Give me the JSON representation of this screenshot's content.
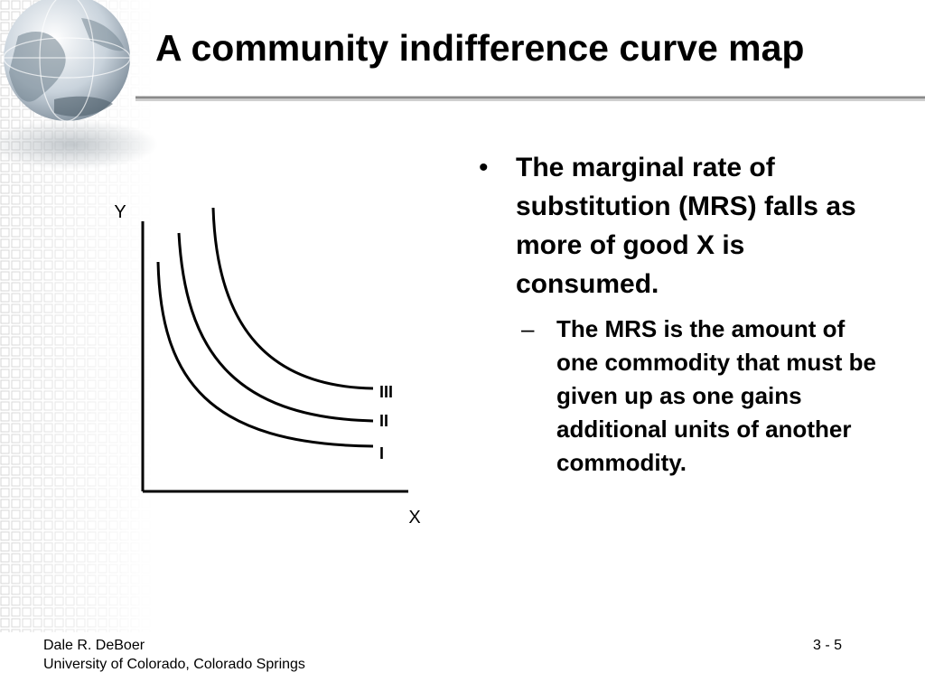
{
  "slide": {
    "title": "A community indifference curve map",
    "bullets": [
      {
        "marker": "•",
        "text": "The marginal rate of substitution (MRS) falls as more of good X is consumed.",
        "sub": {
          "marker": "–",
          "text": "The MRS is the amount of one commodity that must be given up as one gains additional units of another commodity."
        }
      }
    ]
  },
  "diagram": {
    "y_axis_label": "Y",
    "x_axis_label": "X",
    "curve_labels": [
      "I",
      "II",
      "III"
    ]
  },
  "footer": {
    "author": "Dale R. DeBoer",
    "institution": "University of Colorado, Colorado Springs",
    "page": "3 - 5"
  },
  "colors": {
    "title_rule": "#8a8a8a",
    "curve": "#000000",
    "grid_pattern": "#dcdcdc"
  },
  "decor": {
    "globe_icon": "globe-icon"
  }
}
